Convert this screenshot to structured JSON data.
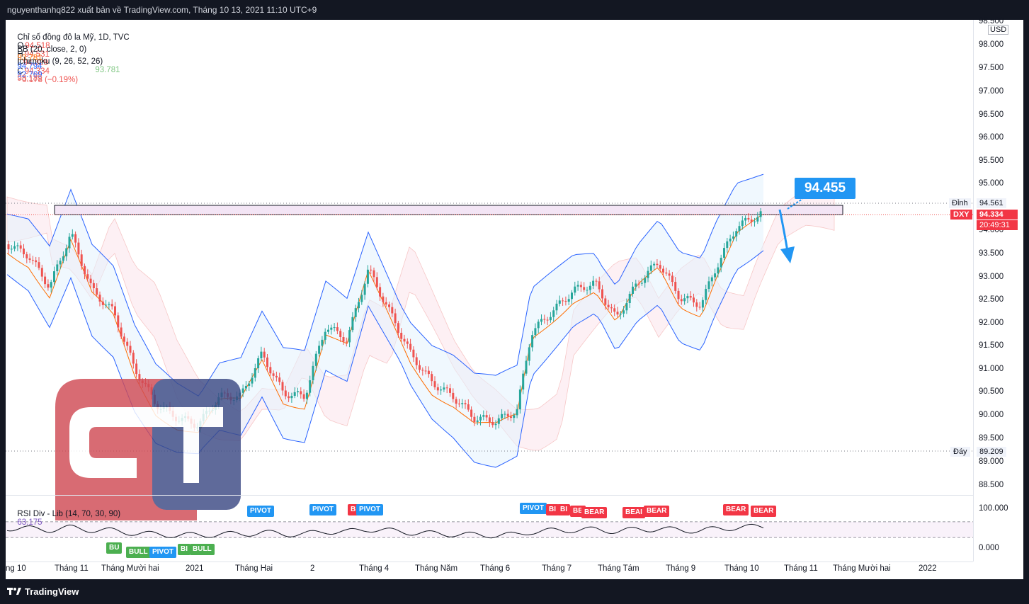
{
  "header": {
    "publisher_line": "nguyenthanhq822 xuất bản về TradingView.com, Tháng 10 13, 2021 11:10 UTC+9"
  },
  "legend": {
    "symbol_line_prefix": "Chỉ số đồng đô la Mỹ, 1D, TVC",
    "open_label": "O",
    "open": "94.518",
    "high_label": "H",
    "high": "94.531",
    "low_label": "L",
    "low": "94.329",
    "close_label": "C",
    "close": "94.334",
    "change": "−0.178 (−0.19%)",
    "bb_label": "BB (20, close, 2, 0)",
    "bb_values": [
      "93.781",
      "94.794",
      "92.769"
    ],
    "ichimoku_label": "Ichimoku (9, 26, 52, 26)",
    "ichimoku_values": [
      "93.781",
      "93.189"
    ]
  },
  "price_axis": {
    "currency": "USD",
    "ticks": [
      "98.500",
      "98.000",
      "97.500",
      "97.000",
      "96.500",
      "96.000",
      "95.500",
      "95.000",
      "94.000",
      "93.500",
      "93.000",
      "92.500",
      "92.000",
      "91.500",
      "91.000",
      "90.500",
      "90.000",
      "89.500",
      "89.000",
      "88.500"
    ],
    "top_label": "Đỉnh",
    "top_value": "94.561",
    "symbol_badge": "DXY",
    "last_price": "94.334",
    "countdown": "20:49:31",
    "bottom_label": "Đáy",
    "bottom_value": "89.209"
  },
  "rsi": {
    "label": "RSI Div - Lib (14, 70, 30, 90)",
    "value": "63.175",
    "axis_top": "100.000",
    "axis_bottom": "0.000"
  },
  "time_axis": {
    "ticks": [
      "ng 10",
      "Tháng 11",
      "Tháng Mười hai",
      "2021",
      "Tháng Hai",
      "2",
      "Tháng 4",
      "Tháng Năm",
      "Tháng 6",
      "Tháng 7",
      "Tháng Tám",
      "Tháng 9",
      "Tháng 10",
      "Tháng 11",
      "Tháng Mười hai",
      "2022"
    ]
  },
  "annotation": {
    "callout": "94.455"
  },
  "signals": [
    {
      "text": "PIVOT",
      "color": "blue"
    },
    {
      "text": "PIVOT",
      "color": "blue"
    },
    {
      "text": "BI",
      "color": "red"
    },
    {
      "text": "PIVOT",
      "color": "blue"
    },
    {
      "text": "PIVOT",
      "color": "blue"
    },
    {
      "text": "BI",
      "color": "red"
    },
    {
      "text": "BI",
      "color": "red"
    },
    {
      "text": "BE",
      "color": "red"
    },
    {
      "text": "BEAR",
      "color": "red"
    },
    {
      "text": "BEAI",
      "color": "red"
    },
    {
      "text": "BEAR",
      "color": "red"
    },
    {
      "text": "BEAR",
      "color": "red"
    },
    {
      "text": "BEAR",
      "color": "red"
    },
    {
      "text": "BU",
      "color": "green"
    },
    {
      "text": "BULL",
      "color": "green"
    },
    {
      "text": "PIVOT",
      "color": "blue"
    },
    {
      "text": "BI",
      "color": "green"
    },
    {
      "text": "BULL",
      "color": "green"
    }
  ],
  "footer": {
    "brand": "TradingView",
    "brand_icon": "tradingview-logo-icon"
  },
  "colors": {
    "up": "#26a69a",
    "down": "#ef5350",
    "bb_band": "#2962ff",
    "bb_basis": "#ff6d00",
    "zone": "#e1bee7",
    "accent": "#2196f3"
  }
}
